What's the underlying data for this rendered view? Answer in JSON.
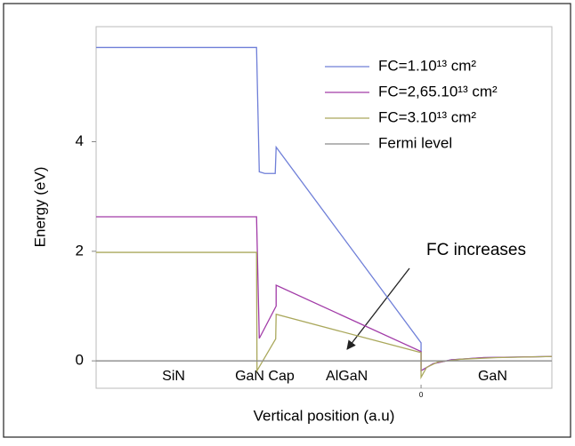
{
  "chart_data": {
    "type": "line",
    "xlabel": "Vertical position (a.u)",
    "ylabel": "Energy (eV)",
    "xlim": [
      0,
      100
    ],
    "ylim": [
      -0.5,
      6.1
    ],
    "yticks": [
      0,
      2,
      4
    ],
    "xticks": [
      {
        "value": 71.3,
        "label": "0"
      }
    ],
    "legend": "upper right",
    "series": [
      {
        "name": "FC=1.10¹³ cm²",
        "color": "#6f7fd8",
        "x": [
          0,
          35.2,
          35.8,
          37,
          39.3,
          39.5,
          71.3,
          71.3,
          74,
          78,
          85,
          100
        ],
        "values": [
          5.72,
          5.72,
          3.45,
          3.42,
          3.42,
          3.9,
          0.33,
          -0.18,
          -0.05,
          0.02,
          0.06,
          0.08
        ]
      },
      {
        "name": "FC=2,65.10¹³ cm²",
        "color": "#a23ca8",
        "x": [
          0,
          35.2,
          35.8,
          39.5,
          39.5,
          71.3,
          71.3,
          74,
          78,
          85,
          100
        ],
        "values": [
          2.63,
          2.63,
          0.41,
          1.0,
          1.38,
          0.17,
          -0.18,
          -0.05,
          0.02,
          0.06,
          0.08
        ]
      },
      {
        "name": "FC=3.10¹³ cm²",
        "color": "#aaa85c",
        "x": [
          0,
          35.2,
          35.3,
          39.4,
          39.5,
          71.3,
          71.3,
          72.5,
          75,
          80,
          88,
          100
        ],
        "values": [
          1.98,
          1.98,
          -0.18,
          0.4,
          0.85,
          0.15,
          -0.3,
          -0.12,
          -0.02,
          0.03,
          0.06,
          0.08
        ]
      },
      {
        "name": "Fermi level",
        "color": "#8a8a8a",
        "x": [
          0,
          100
        ],
        "values": [
          0,
          0
        ]
      }
    ],
    "regions": [
      {
        "label": "SiN",
        "x": 17
      },
      {
        "label": "GaN Cap",
        "x": 37
      },
      {
        "label": "AlGaN",
        "x": 55
      },
      {
        "label": "GaN",
        "x": 87
      }
    ],
    "annotation": "FC increases"
  }
}
